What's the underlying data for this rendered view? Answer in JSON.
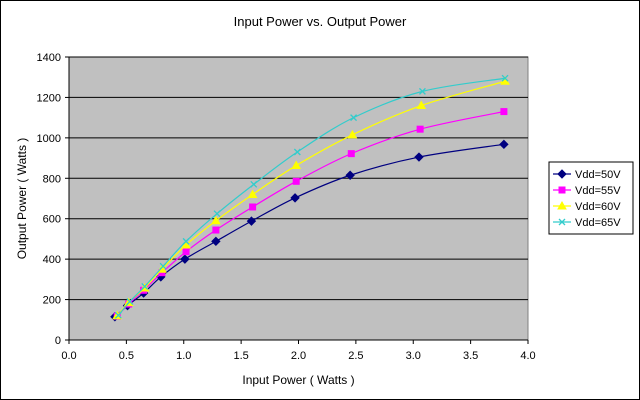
{
  "chart_data": {
    "type": "line",
    "title": "Input Power vs. Output Power",
    "xlabel": "Input Power ( Watts )",
    "ylabel": "Output Power ( Watts )",
    "xlim": [
      0,
      4.0
    ],
    "ylim": [
      0,
      1400
    ],
    "x_ticks": [
      "0.0",
      "0.5",
      "1.0",
      "1.5",
      "2.0",
      "2.5",
      "3.0",
      "3.5",
      "4.0"
    ],
    "y_ticks": [
      "0",
      "200",
      "400",
      "600",
      "800",
      "1000",
      "1200",
      "1400"
    ],
    "grid": true,
    "plot_background": "#c0c0c0",
    "legend_position": "right",
    "series": [
      {
        "name": "Vdd=50V",
        "color": "#000080",
        "marker": "diamond",
        "x": [
          0.4,
          0.51,
          0.65,
          0.8,
          1.01,
          1.28,
          1.59,
          1.97,
          2.45,
          3.05,
          3.79
        ],
        "y": [
          115,
          170,
          232,
          312,
          400,
          488,
          588,
          703,
          815,
          905,
          968
        ]
      },
      {
        "name": "Vdd=55V",
        "color": "#ff00ff",
        "marker": "square",
        "x": [
          0.42,
          0.52,
          0.65,
          0.81,
          1.02,
          1.28,
          1.6,
          1.98,
          2.46,
          3.06,
          3.79
        ],
        "y": [
          118,
          178,
          246,
          333,
          437,
          544,
          658,
          785,
          922,
          1043,
          1130
        ]
      },
      {
        "name": "Vdd=60V",
        "color": "#ffff00",
        "marker": "triangle",
        "x": [
          0.42,
          0.52,
          0.66,
          0.81,
          1.02,
          1.28,
          1.6,
          1.98,
          2.47,
          3.07,
          3.8
        ],
        "y": [
          120,
          185,
          257,
          350,
          470,
          590,
          720,
          863,
          1015,
          1160,
          1280
        ]
      },
      {
        "name": "Vdd=65V",
        "color": "#33cccc",
        "marker": "x",
        "x": [
          0.43,
          0.53,
          0.66,
          0.82,
          1.02,
          1.29,
          1.61,
          1.99,
          2.48,
          3.08,
          3.8
        ],
        "y": [
          122,
          190,
          265,
          365,
          488,
          625,
          770,
          930,
          1100,
          1230,
          1295
        ]
      }
    ]
  }
}
